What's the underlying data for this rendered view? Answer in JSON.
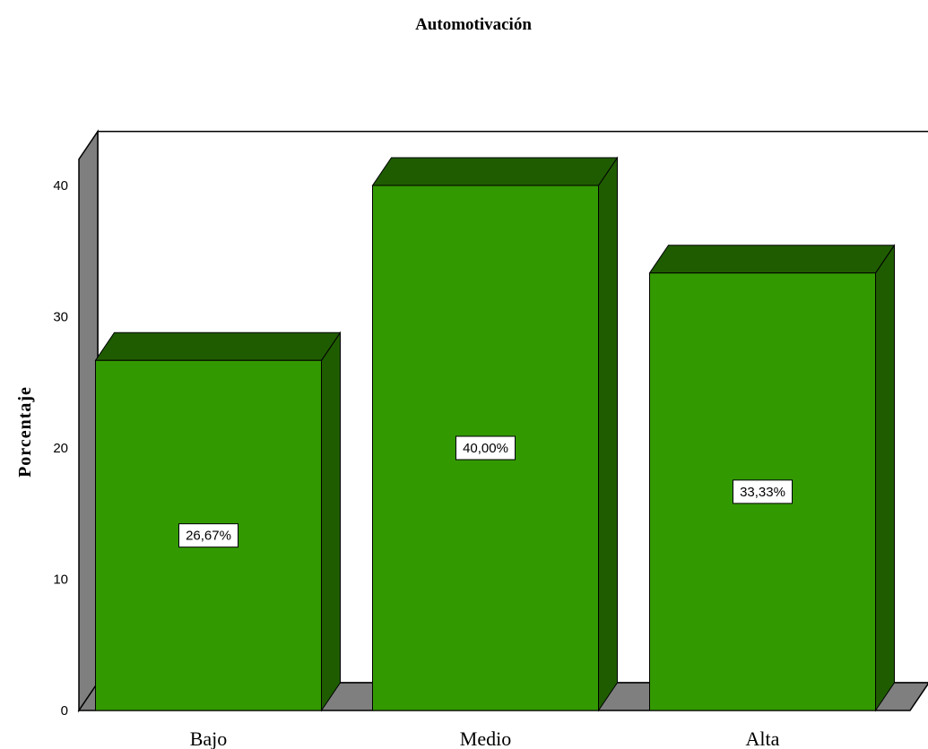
{
  "chart_data": {
    "type": "bar",
    "title": "Automotivación",
    "ylabel": "Porcentaje",
    "xlabel": "",
    "categories": [
      "Bajo",
      "Medio",
      "Alta"
    ],
    "values": [
      26.67,
      40.0,
      33.33
    ],
    "data_labels": [
      "26,67%",
      "40,00%",
      "33,33%"
    ],
    "ylim": [
      0,
      42
    ],
    "yticks": [
      0,
      10,
      20,
      30,
      40
    ],
    "grid": true,
    "style": "3d",
    "colors": {
      "bar_front": "#339900",
      "bar_top": "#1f5c00",
      "bar_side": "#1f5c00",
      "wall": "#7f7f7f",
      "gridline": "#c8c8c8"
    }
  }
}
